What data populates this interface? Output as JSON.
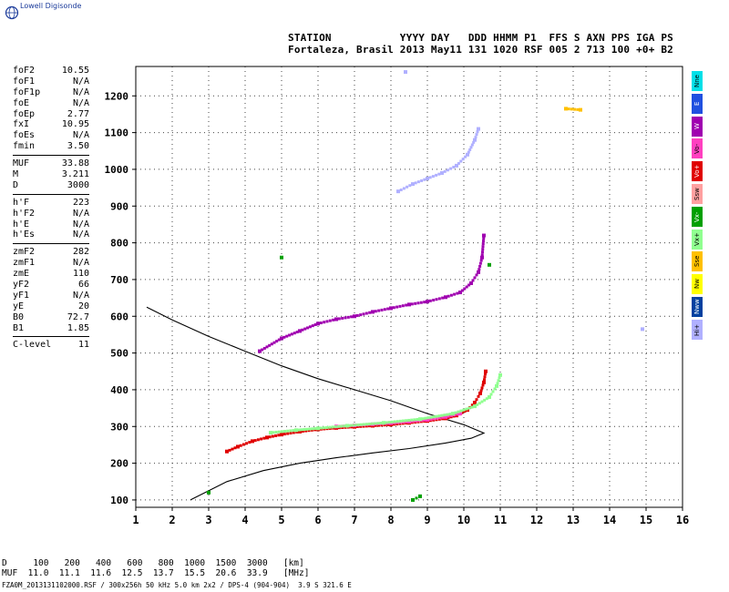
{
  "logo": {
    "text": "Lowell Digisonde",
    "icon": "globe-icon"
  },
  "header": {
    "labels_line": "STATION           YYYY DAY   DDD HHMM P1  FFS S AXN PPS IGA PS",
    "values_line": "Fortaleza, Brasil 2013 May11 131 1020 RSF 005 2 713 100 +0+ B2"
  },
  "parameters": {
    "group1": [
      {
        "name": "foF2",
        "value": "10.55"
      },
      {
        "name": "foF1",
        "value": "N/A"
      },
      {
        "name": "foF1p",
        "value": "N/A"
      },
      {
        "name": "foE",
        "value": "N/A"
      },
      {
        "name": "foEp",
        "value": "2.77"
      },
      {
        "name": "fxI",
        "value": "10.95"
      },
      {
        "name": "foEs",
        "value": "N/A"
      },
      {
        "name": "fmin",
        "value": "3.50"
      }
    ],
    "group2": [
      {
        "name": "MUF",
        "value": "33.88"
      },
      {
        "name": "M",
        "value": "3.211"
      },
      {
        "name": "D",
        "value": "3000"
      }
    ],
    "group3": [
      {
        "name": "h'F",
        "value": "223"
      },
      {
        "name": "h'F2",
        "value": "N/A"
      },
      {
        "name": "h'E",
        "value": "N/A"
      },
      {
        "name": "h'Es",
        "value": "N/A"
      }
    ],
    "group4": [
      {
        "name": "zmF2",
        "value": "282"
      },
      {
        "name": "zmF1",
        "value": "N/A"
      },
      {
        "name": "zmE",
        "value": "110"
      },
      {
        "name": "yF2",
        "value": "66"
      },
      {
        "name": "yF1",
        "value": "N/A"
      },
      {
        "name": "yE",
        "value": "20"
      },
      {
        "name": "B0",
        "value": "72.7"
      },
      {
        "name": "B1",
        "value": "1.85"
      }
    ],
    "group5": [
      {
        "name": "C-level",
        "value": "11"
      }
    ]
  },
  "legend": [
    {
      "label": "Nne",
      "color": "#00e0e8"
    },
    {
      "label": "E",
      "color": "#2050e0"
    },
    {
      "label": "W",
      "color": "#a000b0"
    },
    {
      "label": "Vo-",
      "color": "#ff40c0"
    },
    {
      "label": "Vo+",
      "color": "#e00000"
    },
    {
      "label": "Ssw",
      "color": "#ffa0a0"
    },
    {
      "label": "Vx-",
      "color": "#00a000"
    },
    {
      "label": "Vx+",
      "color": "#90ff90"
    },
    {
      "label": "Sse",
      "color": "#ffc000"
    },
    {
      "label": "Nw",
      "color": "#ffff00"
    },
    {
      "label": "Nww",
      "color": "#0040a0"
    },
    {
      "label": "Hi+",
      "color": "#b0b0ff"
    }
  ],
  "bottom": {
    "d_line": "D     100   200   400   600   800  1000  1500  3000   [km]",
    "muf_line": "MUF  11.0  11.1  11.6  12.5  13.7  15.5  20.6  33.9   [MHz]",
    "footer": "FZA0M_2013131102000.RSF / 300x256h 50 kHz 5.0 km 2x2 / DPS-4 (904-904)  3.9 S 321.6 E"
  },
  "chart_data": {
    "type": "scatter",
    "xlim": [
      1,
      16
    ],
    "ylim": [
      80,
      1280
    ],
    "xticks": [
      1,
      2,
      3,
      4,
      5,
      6,
      7,
      8,
      9,
      10,
      11,
      12,
      13,
      14,
      15,
      16
    ],
    "yticks": [
      100,
      200,
      300,
      400,
      500,
      600,
      700,
      800,
      900,
      1000,
      1100,
      1200
    ],
    "grid": true,
    "series": [
      {
        "name": "Vo+",
        "color": "#e00000",
        "points": [
          [
            3.5,
            232
          ],
          [
            3.8,
            245
          ],
          [
            4.2,
            260
          ],
          [
            4.6,
            270
          ],
          [
            5,
            278
          ],
          [
            5.5,
            286
          ],
          [
            6,
            292
          ],
          [
            6.5,
            296
          ],
          [
            7,
            299
          ],
          [
            7.5,
            302
          ],
          [
            8,
            305
          ],
          [
            8.5,
            310
          ],
          [
            9,
            315
          ],
          [
            9.5,
            322
          ],
          [
            9.8,
            330
          ],
          [
            10.1,
            345
          ],
          [
            10.3,
            365
          ],
          [
            10.45,
            390
          ],
          [
            10.55,
            420
          ],
          [
            10.6,
            450
          ]
        ]
      },
      {
        "name": "Vo-",
        "color": "#ff40c0",
        "points": [
          [
            6.5,
            300
          ],
          [
            7,
            303
          ],
          [
            7.5,
            306
          ],
          [
            8,
            309
          ],
          [
            8.5,
            313
          ],
          [
            9,
            318
          ],
          [
            9.5,
            326
          ],
          [
            9.9,
            335
          ]
        ]
      },
      {
        "name": "Vx+",
        "color": "#90ff90",
        "points": [
          [
            4.7,
            283
          ],
          [
            5.4,
            290
          ],
          [
            6,
            295
          ],
          [
            6.8,
            302
          ],
          [
            7.8,
            310
          ],
          [
            8.8,
            320
          ],
          [
            9.7,
            335
          ],
          [
            10.3,
            355
          ],
          [
            10.7,
            380
          ],
          [
            10.9,
            410
          ],
          [
            11,
            440
          ]
        ]
      },
      {
        "name": "W",
        "color": "#a000b0",
        "points": [
          [
            4.4,
            505
          ],
          [
            5,
            540
          ],
          [
            5.5,
            560
          ],
          [
            6,
            580
          ],
          [
            6.5,
            592
          ],
          [
            7,
            600
          ],
          [
            7.5,
            612
          ],
          [
            8,
            622
          ],
          [
            8.5,
            632
          ],
          [
            9,
            640
          ],
          [
            9.5,
            652
          ],
          [
            9.9,
            665
          ],
          [
            10.2,
            690
          ],
          [
            10.4,
            720
          ],
          [
            10.5,
            760
          ],
          [
            10.55,
            820
          ]
        ]
      },
      {
        "name": "Vx-",
        "color": "#00a000",
        "points": [
          [
            3,
            120
          ],
          [
            8.6,
            100
          ],
          [
            8.8,
            110
          ],
          [
            10.7,
            740
          ],
          [
            5,
            760
          ]
        ]
      },
      {
        "name": "Hi+",
        "color": "#b0b0ff",
        "points": [
          [
            8.2,
            940
          ],
          [
            8.6,
            960
          ],
          [
            9,
            975
          ],
          [
            9.4,
            990
          ],
          [
            9.8,
            1010
          ],
          [
            10.1,
            1040
          ],
          [
            10.3,
            1080
          ],
          [
            10.4,
            1110
          ],
          [
            8.4,
            1265
          ],
          [
            14.9,
            565
          ]
        ]
      },
      {
        "name": "Sse",
        "color": "#ffc000",
        "points": [
          [
            12.8,
            1165
          ],
          [
            13.2,
            1162
          ]
        ]
      }
    ],
    "profile": {
      "name": "electron density profile",
      "color": "#000000",
      "points": [
        [
          2.5,
          100
        ],
        [
          3.5,
          150
        ],
        [
          4.5,
          180
        ],
        [
          5.5,
          200
        ],
        [
          6.5,
          215
        ],
        [
          7.5,
          228
        ],
        [
          8.5,
          240
        ],
        [
          9.5,
          255
        ],
        [
          10.2,
          268
        ],
        [
          10.55,
          282
        ],
        [
          10,
          305
        ],
        [
          9,
          335
        ],
        [
          8,
          370
        ],
        [
          7,
          400
        ],
        [
          6,
          430
        ],
        [
          5,
          465
        ],
        [
          4,
          505
        ],
        [
          3,
          545
        ],
        [
          2,
          590
        ],
        [
          1.3,
          625
        ]
      ]
    }
  }
}
